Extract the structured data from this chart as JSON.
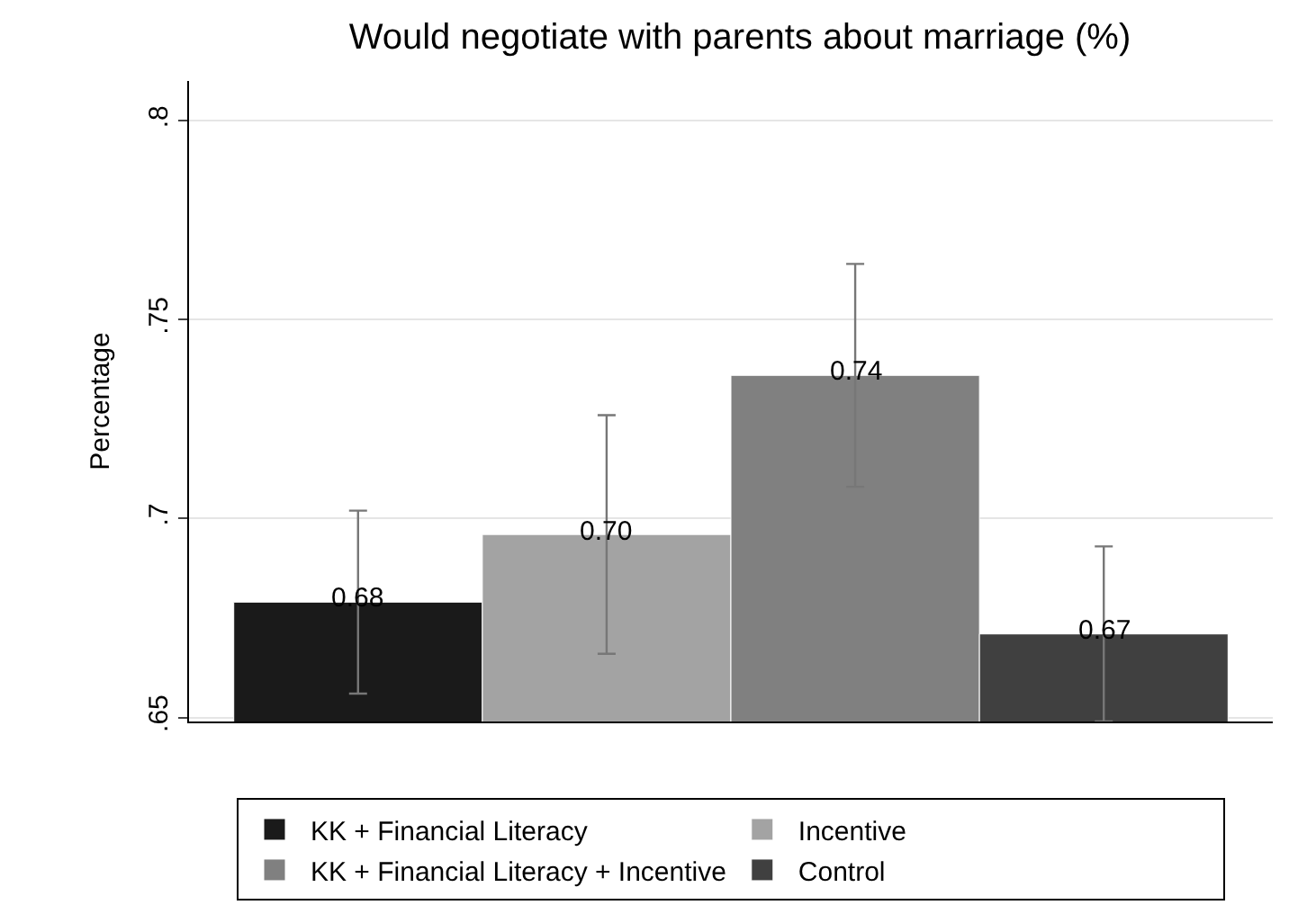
{
  "chart_data": {
    "type": "bar",
    "title": "Would negotiate with parents about marriage (%)",
    "ylabel": "Percentage",
    "categories": [
      null,
      null,
      null,
      null
    ],
    "series": [
      {
        "name": "KK + Financial Literacy",
        "color": "#1a1a1a",
        "values": [
          0.679,
          null,
          null,
          null
        ],
        "errors": [
          0.023,
          null,
          null,
          null
        ],
        "value_labels": [
          "0.68",
          null,
          null,
          null
        ]
      },
      {
        "name": "Incentive",
        "color": "#a3a3a3",
        "values": [
          null,
          0.696,
          null,
          null
        ],
        "errors": [
          null,
          0.03,
          null,
          null
        ],
        "value_labels": [
          null,
          "0.70",
          null,
          null
        ]
      },
      {
        "name": "KK + Financial Literacy + Incentive",
        "color": "#808080",
        "values": [
          null,
          null,
          0.736,
          null
        ],
        "errors": [
          null,
          null,
          0.028,
          null
        ],
        "value_labels": [
          null,
          null,
          "0.74",
          null
        ]
      },
      {
        "name": "Control",
        "color": "#404040",
        "values": [
          null,
          null,
          null,
          0.671
        ],
        "errors": [
          null,
          null,
          null,
          0.022
        ],
        "value_labels": [
          null,
          null,
          null,
          "0.67"
        ]
      }
    ],
    "ylim": [
      0.649,
      0.81
    ],
    "yticks": [
      {
        "value": 0.65,
        "label": ".65"
      },
      {
        "value": 0.7,
        "label": ".7"
      },
      {
        "value": 0.75,
        "label": ".75"
      },
      {
        "value": 0.8,
        "label": ".8"
      }
    ],
    "grid": "y",
    "legend": "bottom",
    "tick_labels": "y"
  }
}
